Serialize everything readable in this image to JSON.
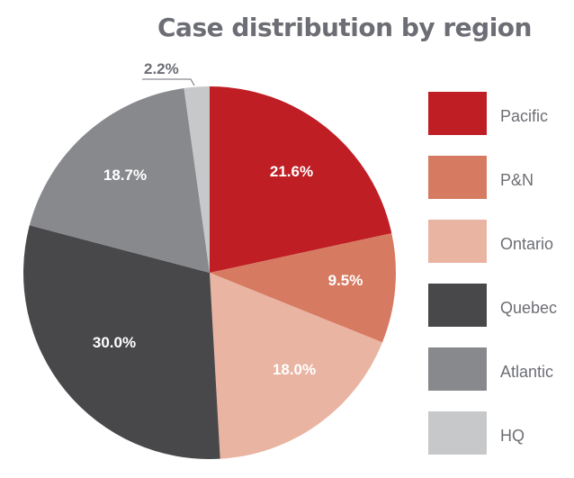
{
  "chart_data": {
    "type": "pie",
    "title": "Case distribution by region",
    "categories": [
      "Pacific",
      "P&N",
      "Ontario",
      "Quebec",
      "Atlantic",
      "HQ"
    ],
    "values": [
      21.6,
      9.5,
      18.0,
      30.0,
      18.7,
      2.2
    ],
    "labels": [
      "21.6%",
      "9.5%",
      "18.0%",
      "30.0%",
      "18.7%",
      "2.2%"
    ],
    "colors": [
      "#be1e24",
      "#d77a62",
      "#e9b4a2",
      "#48474a",
      "#88898c",
      "#c7c8ca"
    ],
    "legend_position": "right",
    "start_angle": "12 o'clock, clockwise"
  },
  "title": "Case distribution by region",
  "legend": {
    "items": [
      {
        "label": "Pacific",
        "color": "#be1e24"
      },
      {
        "label": "P&N",
        "color": "#d77a62"
      },
      {
        "label": "Ontario",
        "color": "#e9b4a2"
      },
      {
        "label": "Quebec",
        "color": "#48474a"
      },
      {
        "label": "Atlantic",
        "color": "#88898c"
      },
      {
        "label": "HQ",
        "color": "#c7c8ca"
      }
    ]
  },
  "slice_labels": {
    "pacific": "21.6%",
    "pn": "9.5%",
    "ontario": "18.0%",
    "quebec": "30.0%",
    "atlantic": "18.7%",
    "hq": "2.2%"
  }
}
